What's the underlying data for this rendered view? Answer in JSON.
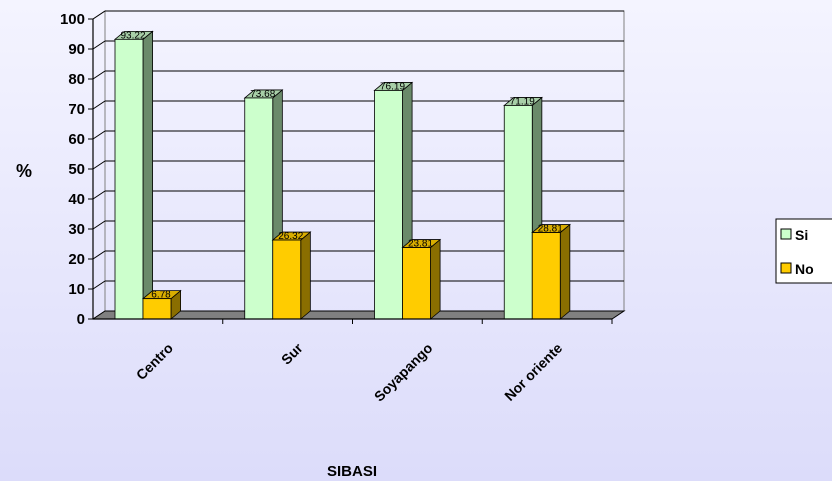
{
  "chart_data": {
    "type": "bar",
    "title": "",
    "xlabel": "SIBASI",
    "ylabel": "%",
    "ylim": [
      0,
      100
    ],
    "yticks": [
      0,
      10,
      20,
      30,
      40,
      50,
      60,
      70,
      80,
      90,
      100
    ],
    "categories": [
      "Centro",
      "Sur",
      "Soyapango",
      "Nor oriente"
    ],
    "series": [
      {
        "name": "Si",
        "values": [
          93.22,
          73.68,
          76.19,
          71.19
        ],
        "labels": [
          "93.22",
          "73.68",
          "76.19",
          "71.19"
        ]
      },
      {
        "name": "No",
        "values": [
          6.78,
          26.32,
          23.81,
          28.81
        ],
        "labels": [
          "6.78",
          "26.32",
          "23.81",
          "28.81"
        ]
      }
    ],
    "grid": true,
    "legend_position": "right",
    "colors": {
      "Si": "#ccffcc",
      "Si_side": "#6a8a6a",
      "Si_top": "#a8cfa8",
      "No": "#ffcc00",
      "No_side": "#8a6e00",
      "No_top": "#d9ad00"
    }
  }
}
